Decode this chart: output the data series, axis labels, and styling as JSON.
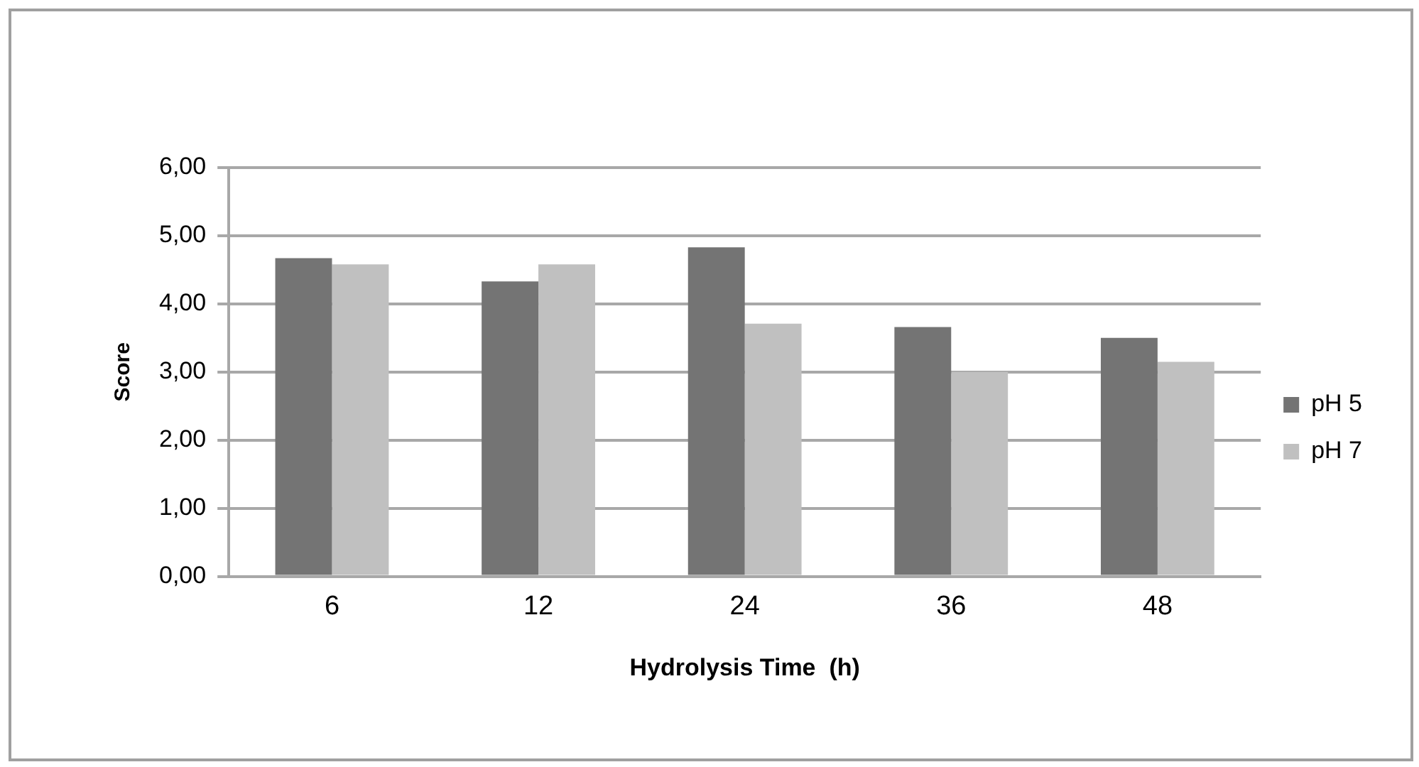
{
  "chart_data": {
    "type": "bar",
    "xlabel": "Hydrolysis Time  (h)",
    "ylabel": "Score",
    "categories": [
      "6",
      "12",
      "24",
      "36",
      "48"
    ],
    "series": [
      {
        "name": "pH 5",
        "color": "#747474",
        "values": [
          4.67,
          4.33,
          4.83,
          3.66,
          3.5
        ]
      },
      {
        "name": "pH 7",
        "color": "#c0c0c0",
        "values": [
          4.58,
          4.58,
          3.71,
          3.0,
          3.15
        ]
      }
    ],
    "ylim": [
      0,
      6
    ],
    "yticks": [
      {
        "value": 0,
        "label": "0,00"
      },
      {
        "value": 1,
        "label": "1,00"
      },
      {
        "value": 2,
        "label": "2,00"
      },
      {
        "value": 3,
        "label": "3,00"
      },
      {
        "value": 4,
        "label": "4,00"
      },
      {
        "value": 5,
        "label": "5,00"
      },
      {
        "value": 6,
        "label": "6,00"
      }
    ],
    "grid": "y",
    "legend": "right"
  }
}
